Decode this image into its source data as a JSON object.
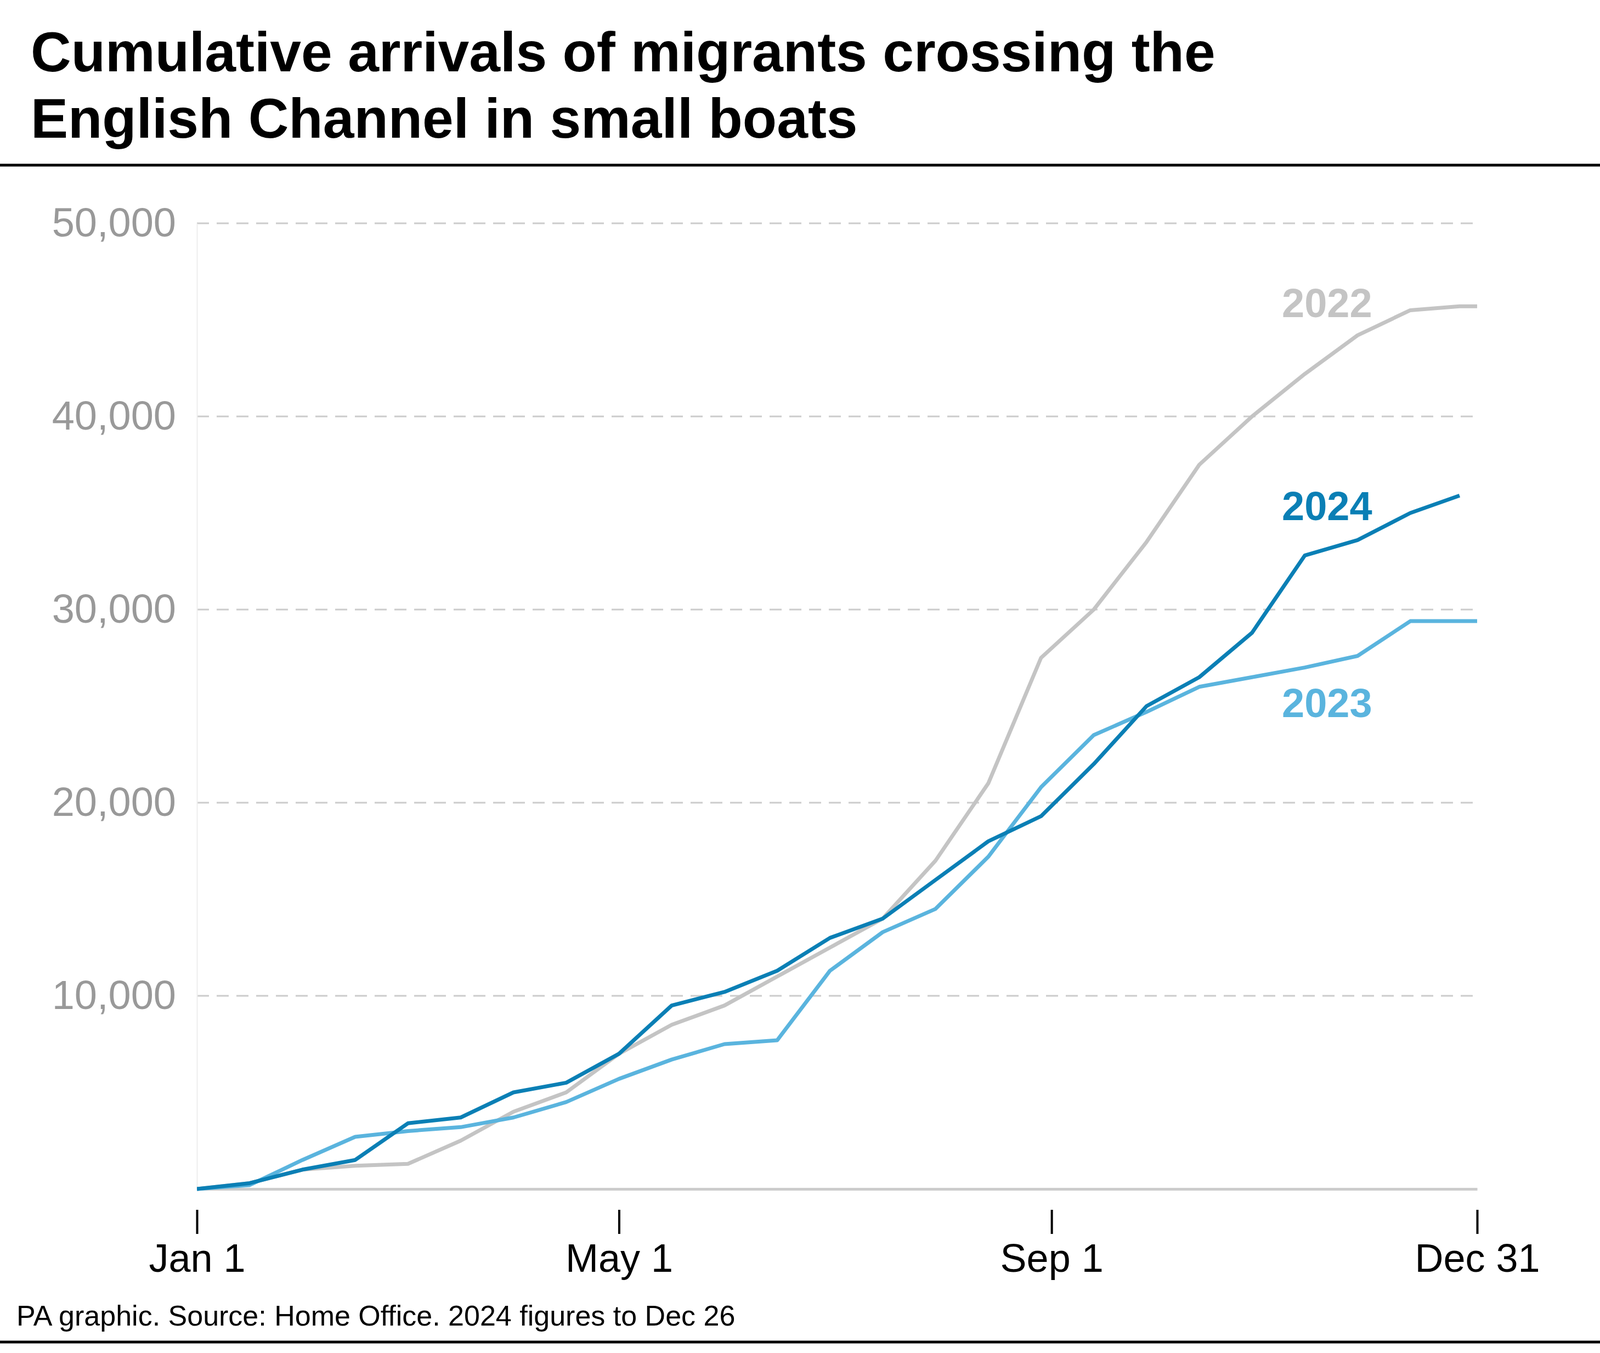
{
  "chart_data": {
    "type": "line",
    "title": "Cumulative arrivals of migrants crossing the English Channel in small boats",
    "footnote": "PA graphic. Source: Home Office. 2024 figures to Dec 26",
    "grid": true,
    "x": [
      0,
      15,
      30,
      45,
      60,
      75,
      90,
      105,
      120,
      135,
      150,
      165,
      180,
      195,
      210,
      225,
      240,
      255,
      270,
      285,
      300,
      315,
      330,
      345,
      359,
      364
    ],
    "xlim": [
      0,
      364
    ],
    "xticks": [
      {
        "value": 0,
        "label": "Jan 1"
      },
      {
        "value": 120,
        "label": "May 1"
      },
      {
        "value": 243,
        "label": "Sep 1"
      },
      {
        "value": 364,
        "label": "Dec 31"
      }
    ],
    "ylim": [
      0,
      50000
    ],
    "yticks": [
      {
        "value": 10000,
        "label": "10,000"
      },
      {
        "value": 20000,
        "label": "20,000"
      },
      {
        "value": 30000,
        "label": "30,000"
      },
      {
        "value": 40000,
        "label": "40,000"
      },
      {
        "value": 50000,
        "label": "50,000"
      }
    ],
    "series": [
      {
        "name": "2022",
        "color": "#c4c4c4",
        "values": [
          0,
          300,
          1000,
          1200,
          1300,
          2500,
          4000,
          5000,
          7000,
          8500,
          9500,
          11000,
          12500,
          14000,
          17000,
          21000,
          27500,
          30000,
          33500,
          37500,
          40000,
          42200,
          44200,
          45500,
          45700,
          45700
        ]
      },
      {
        "name": "2023",
        "color": "#5ab4de",
        "values": [
          0,
          200,
          1500,
          2700,
          3000,
          3200,
          3700,
          4500,
          5700,
          6700,
          7500,
          7700,
          11300,
          13300,
          14500,
          17200,
          20800,
          23500,
          24700,
          26000,
          26500,
          27000,
          27600,
          29400,
          29400,
          29400
        ]
      },
      {
        "name": "2024",
        "color": "#0a7fb5",
        "values": [
          0,
          300,
          1000,
          1500,
          3400,
          3700,
          5000,
          5500,
          7000,
          9500,
          10200,
          11300,
          13000,
          14000,
          16000,
          18000,
          19300,
          22000,
          25000,
          26500,
          28800,
          32800,
          33600,
          35000,
          35900,
          null
        ]
      }
    ]
  }
}
